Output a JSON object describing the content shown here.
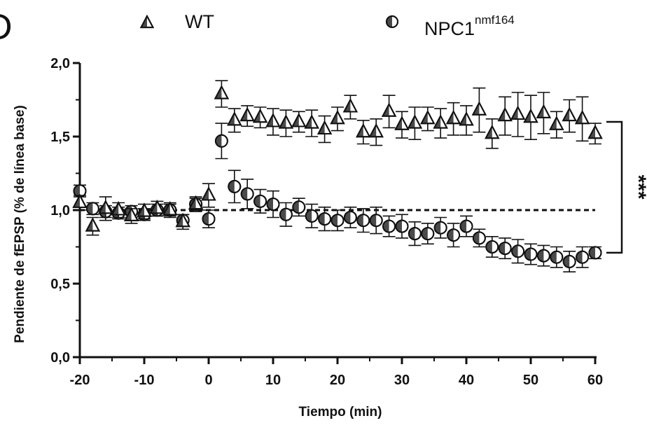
{
  "panel_label": "D",
  "legend": {
    "wt_label": "WT",
    "npc_label": "NPC1",
    "npc_sup": "nmf164"
  },
  "significance": "***",
  "colors": {
    "ink": "#111111",
    "dark_fill": "#4a4a4a",
    "light_fill": "#ffffff"
  },
  "chart_data": {
    "type": "scatter",
    "xlabel": "Tiempo (min)",
    "ylabel": "Pendiente de fEPSP (% de línea base)",
    "xlim": [
      -20,
      60
    ],
    "ylim": [
      0,
      2.0
    ],
    "xticks": [
      -20,
      -10,
      0,
      10,
      20,
      30,
      40,
      50,
      60
    ],
    "yticks": [
      0.0,
      0.5,
      1.0,
      1.5,
      2.0
    ],
    "ytick_labels": [
      "0,0",
      "0,5",
      "1,0",
      "1,5",
      "2,0"
    ],
    "baseline": 1.0,
    "series": [
      {
        "name": "WT",
        "marker": "half-filled-triangle",
        "x": [
          -20,
          -18,
          -16,
          -14,
          -12,
          -10,
          -8,
          -6,
          -4,
          -2,
          0,
          2,
          4,
          6,
          8,
          10,
          12,
          14,
          16,
          18,
          20,
          22,
          24,
          26,
          28,
          30,
          32,
          34,
          36,
          38,
          40,
          42,
          44,
          46,
          48,
          50,
          52,
          54,
          56,
          58,
          60
        ],
        "y": [
          1.05,
          0.89,
          1.01,
          1.0,
          0.96,
          0.99,
          1.01,
          1.0,
          0.92,
          1.04,
          1.1,
          1.79,
          1.61,
          1.64,
          1.63,
          1.6,
          1.59,
          1.6,
          1.59,
          1.55,
          1.62,
          1.7,
          1.53,
          1.53,
          1.67,
          1.58,
          1.59,
          1.62,
          1.59,
          1.62,
          1.61,
          1.68,
          1.52,
          1.64,
          1.65,
          1.63,
          1.66,
          1.58,
          1.64,
          1.62,
          1.52
        ],
        "err": [
          0.05,
          0.06,
          0.08,
          0.05,
          0.05,
          0.05,
          0.05,
          0.05,
          0.05,
          0.05,
          0.08,
          0.09,
          0.08,
          0.07,
          0.07,
          0.09,
          0.09,
          0.07,
          0.09,
          0.09,
          0.08,
          0.08,
          0.08,
          0.09,
          0.11,
          0.09,
          0.11,
          0.08,
          0.1,
          0.11,
          0.1,
          0.15,
          0.1,
          0.13,
          0.15,
          0.15,
          0.14,
          0.09,
          0.11,
          0.15,
          0.07
        ]
      },
      {
        "name": "NPC1nmf164",
        "marker": "half-filled-circle",
        "x": [
          -20,
          -18,
          -16,
          -14,
          -12,
          -10,
          -8,
          -6,
          -4,
          -2,
          0,
          2,
          4,
          6,
          8,
          10,
          12,
          14,
          16,
          18,
          20,
          22,
          24,
          26,
          28,
          30,
          32,
          34,
          36,
          38,
          40,
          42,
          44,
          46,
          48,
          50,
          52,
          54,
          56,
          58,
          60
        ],
        "y": [
          1.13,
          1.01,
          0.99,
          0.98,
          0.99,
          0.97,
          1.0,
          1.0,
          0.93,
          1.04,
          0.94,
          1.47,
          1.16,
          1.11,
          1.06,
          1.04,
          0.97,
          1.02,
          0.96,
          0.94,
          0.93,
          0.95,
          0.93,
          0.93,
          0.89,
          0.89,
          0.84,
          0.84,
          0.88,
          0.83,
          0.89,
          0.81,
          0.75,
          0.74,
          0.72,
          0.7,
          0.69,
          0.68,
          0.65,
          0.68,
          0.71
        ],
        "err": [
          0.04,
          0.04,
          0.04,
          0.04,
          0.04,
          0.04,
          0.04,
          0.04,
          0.04,
          0.04,
          0.06,
          0.12,
          0.11,
          0.1,
          0.08,
          0.09,
          0.08,
          0.06,
          0.08,
          0.08,
          0.07,
          0.07,
          0.08,
          0.09,
          0.07,
          0.08,
          0.08,
          0.07,
          0.07,
          0.08,
          0.07,
          0.06,
          0.07,
          0.07,
          0.08,
          0.07,
          0.07,
          0.07,
          0.07,
          0.07,
          0.04
        ]
      }
    ]
  }
}
